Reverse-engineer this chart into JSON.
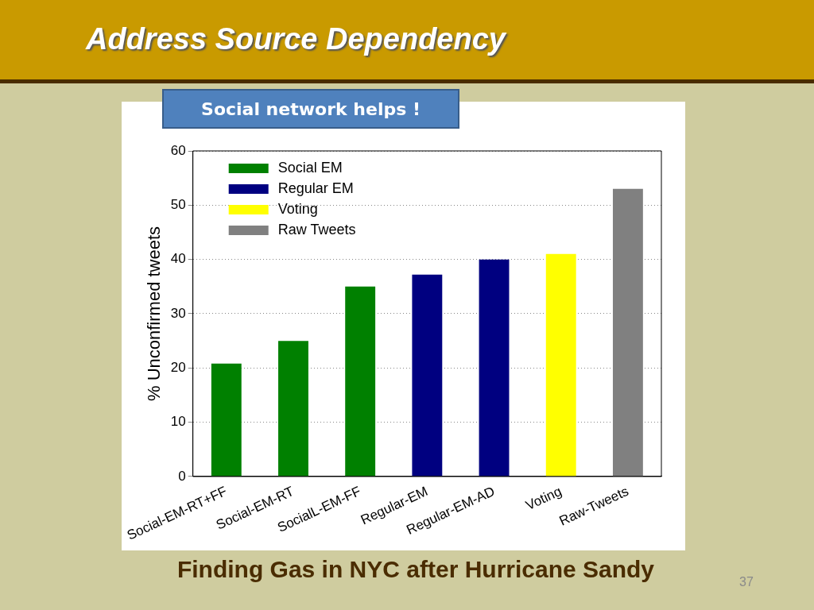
{
  "chart_data": {
    "type": "bar",
    "title": "Address Source Dependency",
    "ylabel": "% Unconfirmed tweets",
    "annotations": [
      "Social network helps !",
      "Finding Gas in NYC after Hurricane Sandy",
      "37"
    ],
    "categories": [
      "Social-EM-RT+FF",
      "Social-EM-RT",
      "SocialL-EM-FF",
      "Regular-EM",
      "Regular-EM-AD",
      "Voting",
      "Raw-Tweets"
    ],
    "series": [
      {
        "name": "Social EM",
        "color": "#008000",
        "values": [
          20.8,
          25,
          35,
          null,
          null,
          null,
          null
        ]
      },
      {
        "name": "Regular EM",
        "color": "#000080",
        "values": [
          null,
          null,
          null,
          37.2,
          40,
          null,
          null
        ]
      },
      {
        "name": "Voting",
        "color": "#ffff00",
        "values": [
          null,
          null,
          null,
          null,
          null,
          41,
          null
        ]
      },
      {
        "name": "Raw Tweets",
        "color": "#808080",
        "values": [
          null,
          null,
          null,
          null,
          null,
          null,
          53
        ]
      }
    ],
    "stacked": true,
    "ylim": [
      0,
      60
    ],
    "yticks": [
      0,
      10,
      20,
      30,
      40,
      50,
      60
    ],
    "grid": "y",
    "legend": "top left"
  }
}
